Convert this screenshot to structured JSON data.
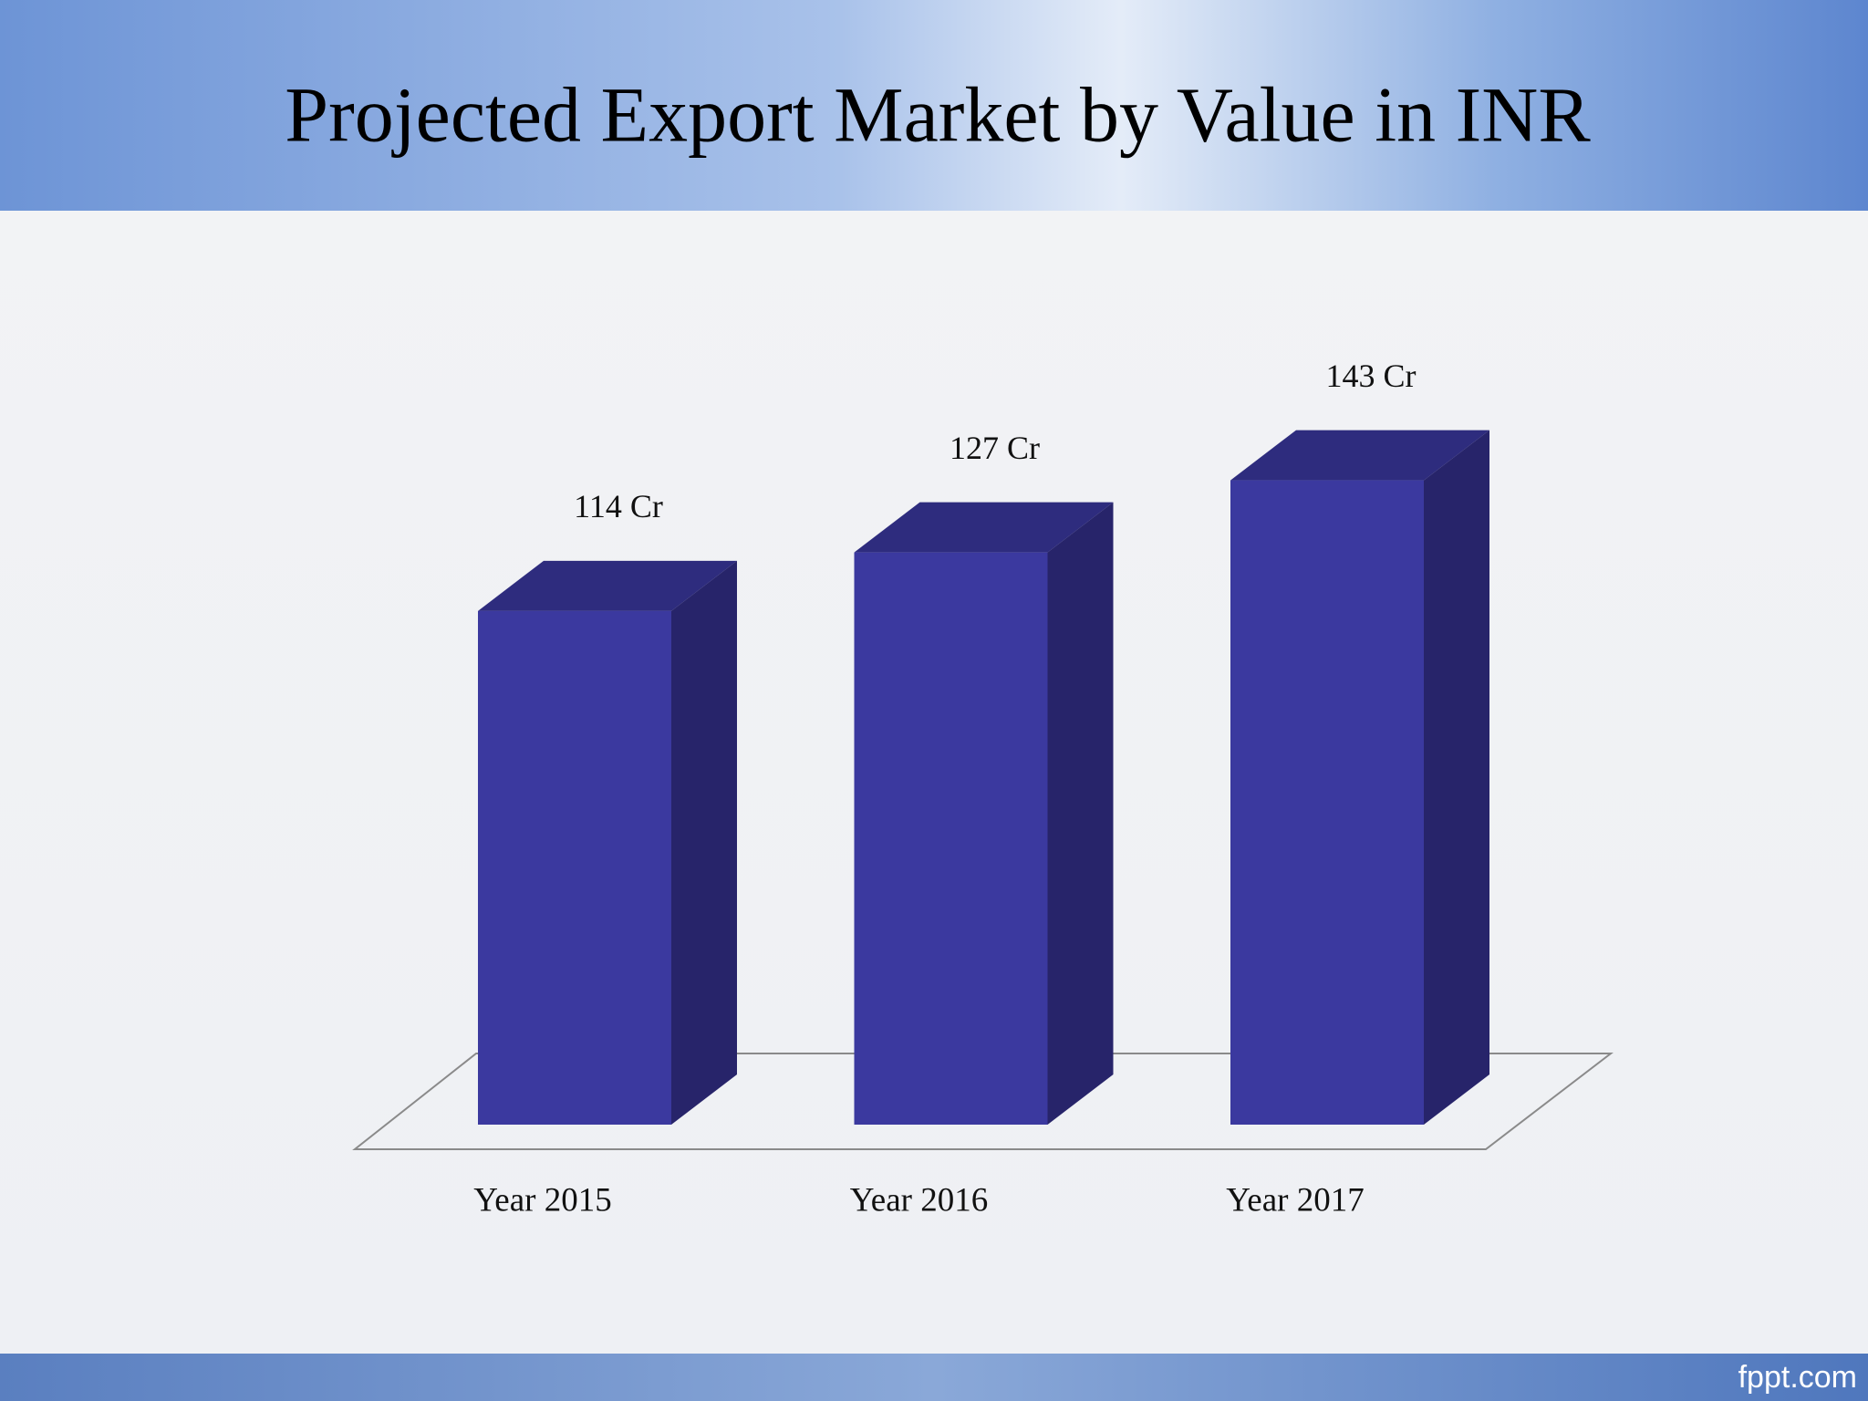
{
  "chart_data": {
    "type": "bar3d",
    "title": "Projected Export Market by Value in INR",
    "categories": [
      "Year 2015",
      "Year 2016",
      "Year 2017"
    ],
    "values": [
      114,
      127,
      143
    ],
    "value_labels": [
      "114 Cr",
      "127 Cr",
      "143 Cr"
    ],
    "color": "#3b399f"
  },
  "footer": "fppt.com"
}
